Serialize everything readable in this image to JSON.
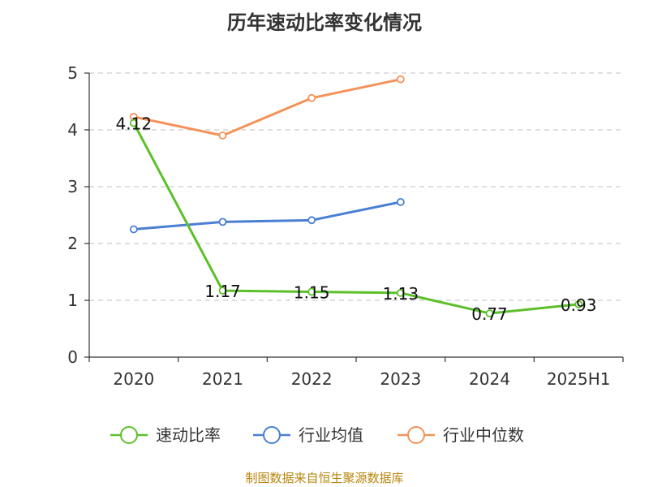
{
  "title": "历年速动比率变化情况",
  "source_note": "制图数据来自恒生聚源数据库",
  "chart_data": {
    "type": "line",
    "title": "历年速动比率变化情况",
    "categories": [
      "2020",
      "2021",
      "2022",
      "2023",
      "2024",
      "2025H1"
    ],
    "y_ticks": [
      "0",
      "1",
      "2",
      "3",
      "4",
      "5"
    ],
    "ylim": [
      0,
      5
    ],
    "grid": true,
    "legend_position": "bottom",
    "series": [
      {
        "name": "速动比率",
        "color": "#5cc02a",
        "values": [
          4.12,
          1.17,
          1.15,
          1.13,
          0.77,
          0.93
        ],
        "labels": [
          "4.12",
          "1.17",
          "1.15",
          "1.13",
          "0.77",
          "0.93"
        ]
      },
      {
        "name": "行业均值",
        "color": "#4a7fd4",
        "values": [
          2.25,
          2.38,
          2.41,
          2.73,
          null,
          null
        ]
      },
      {
        "name": "行业中位数",
        "color": "#f4925a",
        "values": [
          4.23,
          3.9,
          4.56,
          4.89,
          null,
          null
        ]
      }
    ]
  }
}
